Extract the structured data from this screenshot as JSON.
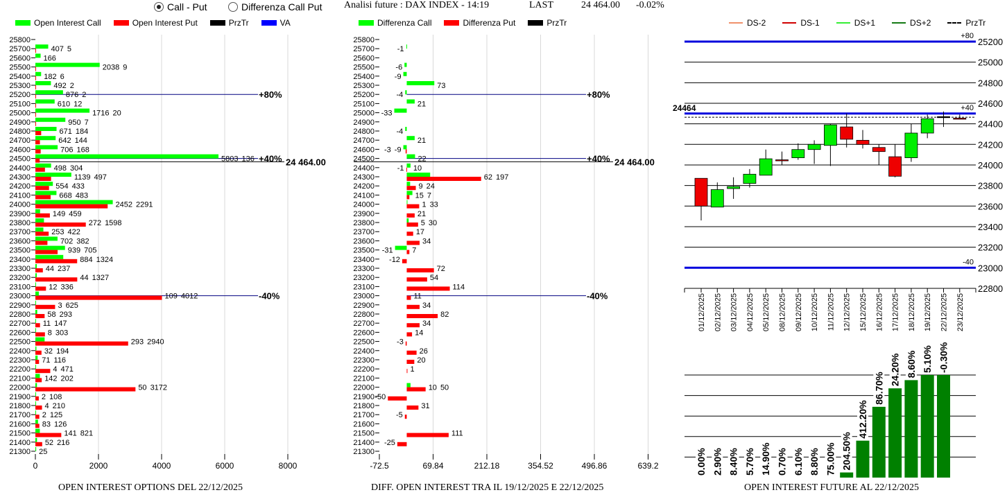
{
  "header": {
    "radio_call_put": "Call - Put",
    "radio_diff": "Differenza Call Put",
    "radio_selected": "Call - Put",
    "title": "Analisi future : DAX INDEX - 14:19",
    "last_label": "LAST",
    "last_value": "24 464.00",
    "change": "-0.02%"
  },
  "legend_left": [
    {
      "label": "Open Interest Call",
      "color": "#00ff00"
    },
    {
      "label": "Open Interest Put",
      "color": "#ff0000"
    },
    {
      "label": "PrzTr",
      "color": "#000000"
    },
    {
      "label": "VA",
      "color": "#0000ff"
    }
  ],
  "legend_mid": [
    {
      "label": "Differenza Call",
      "color": "#00ff00"
    },
    {
      "label": "Differenza Put",
      "color": "#ff0000"
    },
    {
      "label": "PrzTr",
      "color": "#000000"
    }
  ],
  "legend_right": [
    {
      "label": "DS-2",
      "color": "#f0906a",
      "style": "solid"
    },
    {
      "label": "DS-1",
      "color": "#d00000",
      "style": "solid"
    },
    {
      "label": "DS+1",
      "color": "#33ee33",
      "style": "solid"
    },
    {
      "label": "DS+2",
      "color": "#137a13",
      "style": "solid"
    },
    {
      "label": "PrzTr",
      "color": "#000000",
      "style": "dashed"
    }
  ],
  "chart_data": [
    {
      "type": "bar",
      "orientation": "horizontal",
      "title": "OPEN INTEREST OPTIONS DEL 22/12/2025",
      "categories": [
        25800,
        25700,
        25600,
        25500,
        25400,
        25300,
        25200,
        25100,
        25000,
        24900,
        24800,
        24700,
        24600,
        24500,
        24400,
        24300,
        24200,
        24100,
        24000,
        23900,
        23800,
        23700,
        23600,
        23500,
        23400,
        23300,
        23200,
        23100,
        23000,
        22900,
        22800,
        22700,
        22600,
        22500,
        22400,
        22300,
        22200,
        22100,
        22000,
        21900,
        21800,
        21700,
        21600,
        21500,
        21400,
        21300
      ],
      "series": [
        {
          "name": "Open Interest Call",
          "color": "#00ff00",
          "values": [
            null,
            407,
            166,
            2038,
            182,
            492,
            876,
            610,
            1716,
            950,
            671,
            642,
            706,
            5803,
            498,
            1139,
            554,
            668,
            2452,
            149,
            272,
            253,
            702,
            939,
            884,
            44,
            44,
            12,
            109,
            3,
            58,
            11,
            8,
            293,
            32,
            71,
            4,
            142,
            50,
            2,
            4,
            2,
            83,
            141,
            52,
            25
          ]
        },
        {
          "name": "Open Interest Put",
          "color": "#ff0000",
          "values": [
            null,
            5,
            null,
            9,
            6,
            2,
            2,
            12,
            20,
            7,
            184,
            144,
            168,
            136,
            304,
            497,
            433,
            483,
            2291,
            459,
            1598,
            422,
            382,
            705,
            1324,
            237,
            1327,
            336,
            4012,
            625,
            293,
            147,
            303,
            2940,
            194,
            116,
            471,
            202,
            3172,
            108,
            210,
            125,
            126,
            821,
            216,
            null
          ]
        }
      ],
      "xlim": [
        0,
        8000
      ],
      "xticks": [
        "0",
        "2000",
        "4000",
        "6000",
        "8000"
      ],
      "ref_lines": [
        {
          "strike": 25200,
          "label": "+80%"
        },
        {
          "strike": 24500,
          "label": "+40%"
        },
        {
          "strike": 23000,
          "label": "-40%"
        }
      ],
      "przTr": {
        "value": 24464,
        "label": "24 464.00"
      },
      "grid": true
    },
    {
      "type": "bar",
      "orientation": "horizontal",
      "title": "DIFF. OPEN INTEREST TRA IL 19/12/2025 E 22/12/2025",
      "categories": [
        25800,
        25700,
        25600,
        25500,
        25400,
        25300,
        25200,
        25100,
        25000,
        24900,
        24800,
        24700,
        24600,
        24500,
        24400,
        24300,
        24200,
        24100,
        24000,
        23900,
        23800,
        23700,
        23600,
        23500,
        23400,
        23300,
        23200,
        23100,
        23000,
        22900,
        22800,
        22700,
        22600,
        22500,
        22400,
        22300,
        22200,
        22100,
        22000,
        21900,
        21800,
        21700,
        21600,
        21500,
        21400,
        21300
      ],
      "series": [
        {
          "name": "Differenza Call",
          "color": "#00ff00",
          "values": [
            null,
            -1,
            null,
            -6,
            -9,
            73,
            -4,
            21,
            -33,
            null,
            -4,
            21,
            -9,
            22,
            10,
            62,
            9,
            15,
            1,
            null,
            5,
            null,
            null,
            -31,
            null,
            null,
            null,
            null,
            null,
            null,
            null,
            null,
            null,
            null,
            null,
            null,
            null,
            null,
            10,
            null,
            null,
            null,
            null,
            null,
            null,
            null
          ]
        },
        {
          "name": "Differenza Put",
          "color": "#ff0000",
          "values": [
            null,
            null,
            null,
            null,
            null,
            null,
            null,
            null,
            null,
            null,
            null,
            null,
            -3,
            null,
            -1,
            197,
            24,
            7,
            33,
            21,
            30,
            17,
            34,
            7,
            -12,
            72,
            54,
            114,
            11,
            34,
            82,
            34,
            14,
            -3,
            26,
            20,
            1,
            null,
            50,
            -50,
            31,
            -5,
            null,
            111,
            -25,
            null
          ]
        }
      ],
      "xlim": [
        -72.5,
        639.2
      ],
      "xticks": [
        "-72.5",
        "69.84",
        "212.18",
        "354.52",
        "496.86",
        "639.2"
      ],
      "ref_lines": [
        {
          "strike": 25200,
          "label": "+80%"
        },
        {
          "strike": 24500,
          "label": "+40%"
        },
        {
          "strike": 23000,
          "label": "-40%"
        }
      ],
      "przTr": {
        "value": 24464,
        "label": "24 464.00"
      },
      "grid": true
    },
    {
      "type": "candlestick",
      "dates": [
        "01/12/2025",
        "02/12/2025",
        "03/12/2025",
        "04/12/2025",
        "05/12/2025",
        "08/12/2025",
        "09/12/2025",
        "10/12/2025",
        "11/12/2025",
        "12/12/2025",
        "15/12/2025",
        "16/12/2025",
        "17/12/2025",
        "18/12/2025",
        "19/12/2025",
        "22/12/2025",
        "23/12/2025"
      ],
      "ohlc": [
        [
          23870,
          23870,
          23460,
          23600
        ],
        [
          23590,
          23830,
          23590,
          23760
        ],
        [
          23770,
          23880,
          23670,
          23790
        ],
        [
          23820,
          23960,
          23780,
          23910
        ],
        [
          23900,
          24150,
          23900,
          24060
        ],
        [
          24050,
          24130,
          24000,
          24040
        ],
        [
          24070,
          24210,
          24050,
          24150
        ],
        [
          24150,
          24240,
          24010,
          24200
        ],
        [
          24190,
          24400,
          23990,
          24390
        ],
        [
          24370,
          24500,
          24170,
          24250
        ],
        [
          24240,
          24340,
          24160,
          24200
        ],
        [
          24170,
          24200,
          24000,
          24130
        ],
        [
          24080,
          24200,
          23880,
          23890
        ],
        [
          24070,
          24400,
          24030,
          24310
        ],
        [
          24310,
          24490,
          24260,
          24450
        ],
        [
          24470,
          24520,
          24370,
          24470
        ],
        [
          24455,
          24490,
          24450,
          24450
        ]
      ],
      "ylim": [
        22800,
        25200
      ],
      "yticks": [
        "25200",
        "25000",
        "24800",
        "24600",
        "24400",
        "24200",
        "24000",
        "23800",
        "23600",
        "23400",
        "23200",
        "23000",
        "22800"
      ],
      "levels": [
        {
          "value": 25200,
          "label": "+80"
        },
        {
          "value": 24500,
          "label": "+40"
        },
        {
          "value": 23000,
          "label": "-40"
        }
      ],
      "przTr": {
        "value": 24464,
        "label": "24464"
      },
      "grid": true
    },
    {
      "type": "bar",
      "title": "OPEN INTEREST FUTURE AL 22/12/2025",
      "labels": [
        "0.00%",
        "2.90%",
        "8.40%",
        "5.70%",
        "14.90%",
        "0.70%",
        "6.10%",
        "8.80%",
        "75.00%",
        "204.50%",
        "412.20%",
        "86.70%",
        "24.20%",
        "8.60%",
        "5.10%",
        "-0.30%"
      ],
      "relative_level": [
        0,
        0,
        0,
        0,
        0,
        0,
        0,
        0,
        0,
        0.05,
        0.36,
        0.69,
        0.87,
        0.95,
        1.0,
        1.0
      ],
      "color": "#008000",
      "grid": true
    }
  ]
}
